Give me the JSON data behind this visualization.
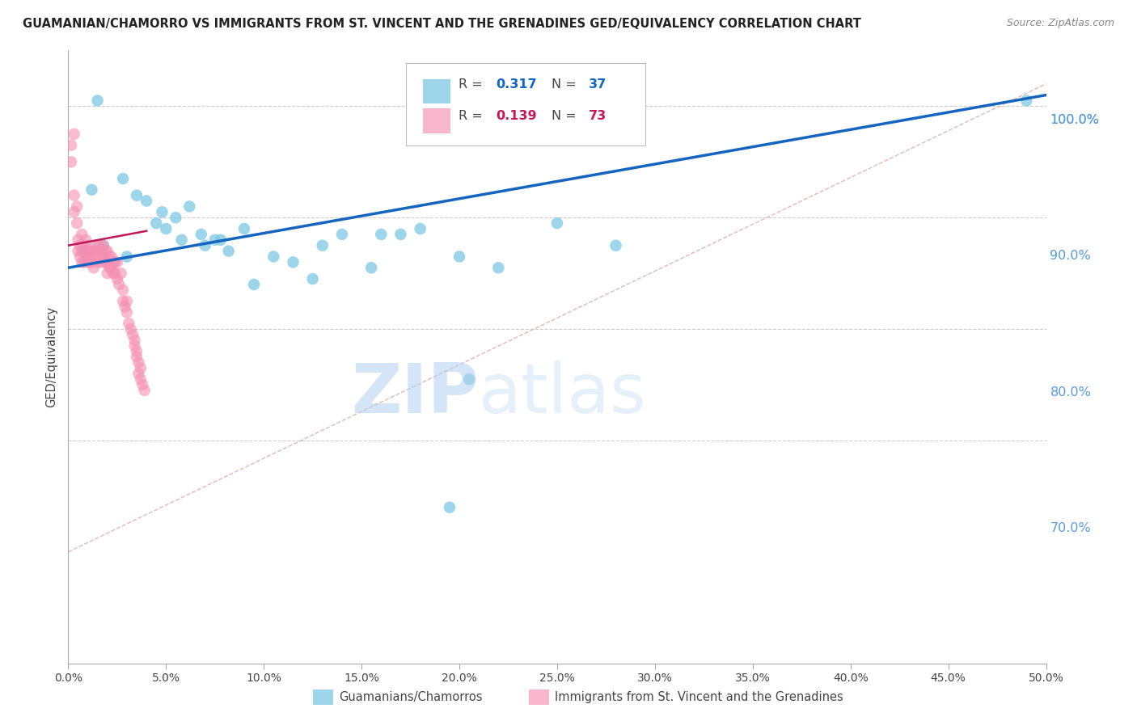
{
  "title": "GUAMANIAN/CHAMORRO VS IMMIGRANTS FROM ST. VINCENT AND THE GRENADINES GED/EQUIVALENCY CORRELATION CHART",
  "source": "Source: ZipAtlas.com",
  "ylabel": "GED/Equivalency",
  "xlim": [
    0.0,
    50.0
  ],
  "ylim": [
    60.0,
    105.0
  ],
  "ytick_vals": [
    70.0,
    80.0,
    90.0,
    100.0
  ],
  "ytick_extra_top": 100.0,
  "ytick_extra_bot": 50.0,
  "xtick_vals": [
    0.0,
    5.0,
    10.0,
    15.0,
    20.0,
    25.0,
    30.0,
    35.0,
    40.0,
    45.0,
    50.0
  ],
  "blue_color": "#7ec8e3",
  "pink_color": "#f48fb1",
  "trend_blue_color": "#1565c0",
  "trend_pink_color": "#c2185b",
  "ref_line_color": "#e0b0b0",
  "legend_blue_R": "0.317",
  "legend_blue_N": "37",
  "legend_pink_R": "0.139",
  "legend_pink_N": "73",
  "legend_label_blue": "Guamanians/Chamorros",
  "legend_label_pink": "Immigrants from St. Vincent and the Grenadines",
  "watermark_zip": "ZIP",
  "watermark_atlas": "atlas",
  "blue_scatter_x": [
    1.5,
    2.8,
    1.2,
    3.5,
    4.0,
    4.8,
    5.5,
    6.2,
    5.0,
    6.8,
    7.5,
    7.0,
    8.2,
    9.0,
    10.5,
    11.5,
    13.0,
    14.0,
    15.5,
    17.0,
    3.0,
    5.8,
    7.8,
    12.5,
    18.0,
    20.0,
    22.0,
    25.0,
    28.0,
    0.8,
    1.8,
    4.5,
    9.5,
    16.0,
    49.0,
    20.5,
    19.5
  ],
  "blue_scatter_y": [
    100.5,
    93.5,
    92.5,
    92.0,
    91.5,
    90.5,
    90.0,
    91.0,
    89.0,
    88.5,
    88.0,
    87.5,
    87.0,
    89.0,
    86.5,
    86.0,
    87.5,
    88.5,
    85.5,
    88.5,
    86.5,
    88.0,
    88.0,
    84.5,
    89.0,
    86.5,
    85.5,
    89.5,
    87.5,
    87.0,
    87.5,
    89.5,
    84.0,
    88.5,
    100.5,
    75.5,
    64.0
  ],
  "pink_scatter_x": [
    0.15,
    0.15,
    0.3,
    0.3,
    0.3,
    0.45,
    0.45,
    0.5,
    0.5,
    0.6,
    0.6,
    0.7,
    0.7,
    0.7,
    0.8,
    0.8,
    0.9,
    0.9,
    1.0,
    1.0,
    1.0,
    1.0,
    1.1,
    1.1,
    1.2,
    1.2,
    1.3,
    1.3,
    1.4,
    1.5,
    1.5,
    1.5,
    1.6,
    1.6,
    1.7,
    1.7,
    1.8,
    1.8,
    1.9,
    1.9,
    2.0,
    2.0,
    2.0,
    2.1,
    2.1,
    2.2,
    2.2,
    2.3,
    2.3,
    2.4,
    2.4,
    2.5,
    2.5,
    2.6,
    2.7,
    2.8,
    2.8,
    2.9,
    3.0,
    3.0,
    3.1,
    3.2,
    3.3,
    3.4,
    3.4,
    3.5,
    3.5,
    3.6,
    3.6,
    3.7,
    3.7,
    3.8,
    3.9
  ],
  "pink_scatter_y": [
    96.5,
    95.0,
    97.5,
    92.0,
    90.5,
    91.0,
    89.5,
    88.0,
    87.0,
    87.5,
    86.5,
    88.5,
    87.0,
    86.0,
    87.5,
    86.0,
    88.0,
    86.5,
    87.5,
    87.0,
    86.5,
    86.0,
    87.0,
    86.0,
    87.0,
    86.0,
    86.5,
    85.5,
    87.0,
    87.5,
    87.0,
    86.0,
    87.5,
    86.5,
    87.0,
    86.0,
    87.5,
    86.5,
    87.0,
    86.0,
    87.0,
    86.0,
    85.0,
    86.5,
    85.5,
    86.5,
    85.5,
    86.0,
    85.0,
    86.0,
    85.0,
    86.0,
    84.5,
    84.0,
    85.0,
    83.5,
    82.5,
    82.0,
    82.5,
    81.5,
    80.5,
    80.0,
    79.5,
    79.0,
    78.5,
    78.0,
    77.5,
    77.0,
    76.0,
    76.5,
    75.5,
    75.0,
    74.5
  ],
  "blue_trend_x": [
    0.0,
    50.0
  ],
  "blue_trend_y": [
    85.5,
    101.0
  ],
  "pink_trend_x": [
    0.0,
    4.0
  ],
  "pink_trend_y": [
    87.5,
    88.8
  ],
  "ref_line_x": [
    0.0,
    50.0
  ],
  "ref_line_y": [
    60.0,
    102.0
  ]
}
